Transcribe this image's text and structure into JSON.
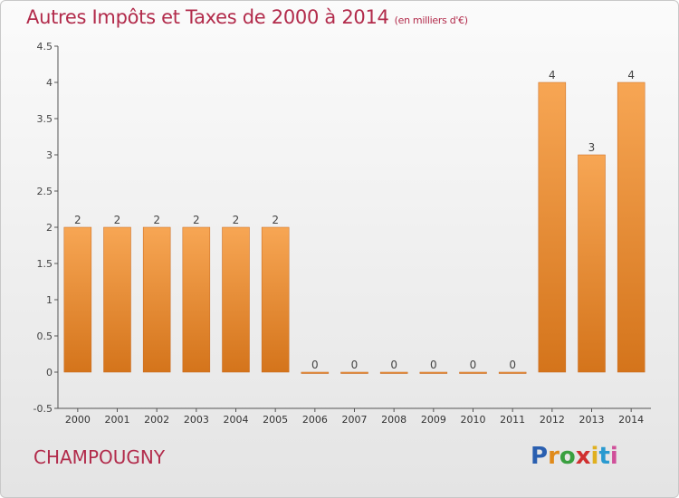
{
  "title": "Autres Impôts et Taxes de 2000 à 2014",
  "unit_label": "(en milliers d'€)",
  "commune": "CHAMPOUGNY",
  "logo": [
    "P",
    "r",
    "o",
    "x",
    "i",
    "t",
    "i"
  ],
  "logo_colors": [
    "#2a5fb0",
    "#e08a1a",
    "#3aa040",
    "#d03030",
    "#e0b020",
    "#2a9ad0",
    "#d0509a"
  ],
  "colors": {
    "bar_light": "#f7a654",
    "bar_dark": "#d4741b",
    "title": "#b22b4b"
  },
  "chart_data": {
    "type": "bar",
    "categories": [
      "2000",
      "2001",
      "2002",
      "2003",
      "2004",
      "2005",
      "2006",
      "2007",
      "2008",
      "2009",
      "2010",
      "2011",
      "2012",
      "2013",
      "2014"
    ],
    "values": [
      2,
      2,
      2,
      2,
      2,
      2,
      0,
      0,
      0,
      0,
      0,
      0,
      4,
      3,
      4
    ],
    "data_labels": [
      "2",
      "2",
      "2",
      "2",
      "2",
      "2",
      "0",
      "0",
      "0",
      "0",
      "0",
      "0",
      "4",
      "3",
      "4"
    ],
    "ylim": [
      -0.5,
      4.5
    ],
    "yticks": [
      -0.5,
      0,
      0.5,
      1,
      1.5,
      2,
      2.5,
      3,
      3.5,
      4,
      4.5
    ],
    "ytick_labels": [
      "-0.5",
      "0",
      "0.5",
      "1",
      "1.5",
      "2",
      "2.5",
      "3",
      "3.5",
      "4",
      "4.5"
    ],
    "grid": false,
    "legend": "none"
  }
}
